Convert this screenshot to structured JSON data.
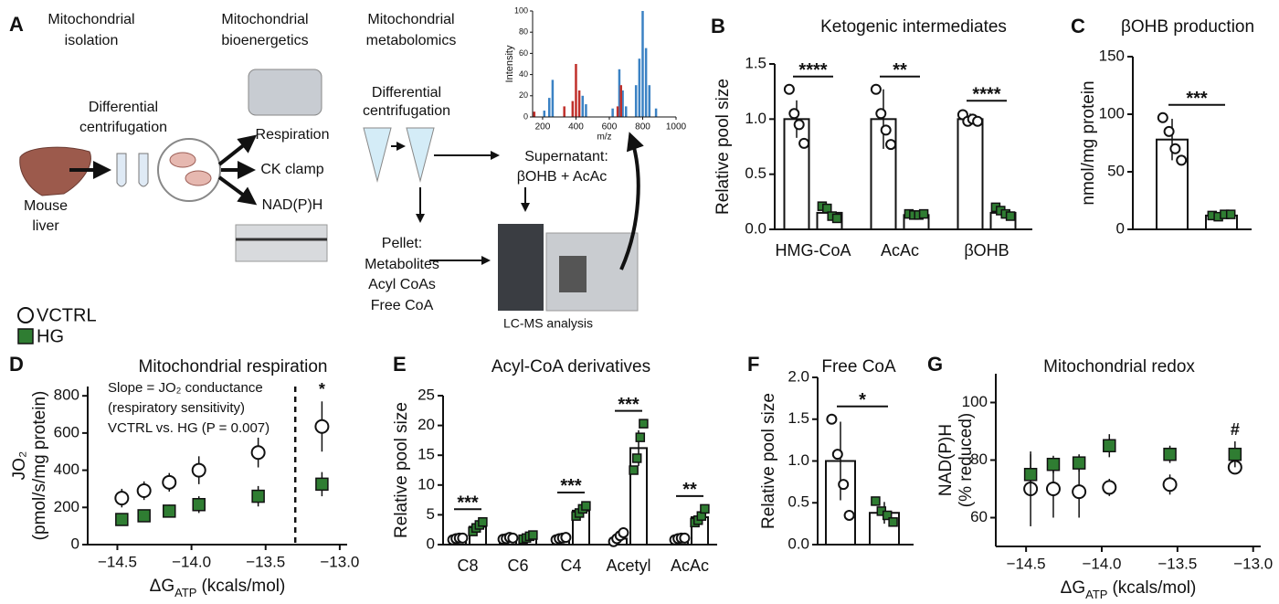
{
  "panel_a": {
    "label": "A",
    "headings": [
      [
        "Mitochondrial",
        "isolation"
      ],
      [
        "Mitochondrial",
        "bioenergetics"
      ],
      [
        "Mitochondrial",
        "metabolomics"
      ]
    ],
    "centrifugation_1": [
      "Differential",
      "centrifugation"
    ],
    "centrifugation_2": [
      "Differential",
      "centrifugation"
    ],
    "source": [
      "Mouse",
      "liver"
    ],
    "assays": [
      "Respiration",
      "CK clamp",
      "NAD(P)H"
    ],
    "supernatant": [
      "Supernatant:",
      "βOHB + AcAc"
    ],
    "pellet": [
      "Pellet:",
      "Metabolites",
      "Acyl CoAs",
      "Free CoA"
    ],
    "instrument": "LC-MS analysis",
    "spectrum": {
      "y_label": "Intensity",
      "x_label": "m/z",
      "xlim": [
        140,
        1000
      ],
      "ylim": [
        0,
        100
      ],
      "xticks": [
        200,
        400,
        600,
        800,
        1000
      ],
      "yticks": [
        0,
        20,
        40,
        60,
        80,
        100
      ],
      "series": [
        {
          "color": "#3b82c4",
          "x": [
            210,
            240,
            260,
            440,
            460,
            620,
            660,
            680,
            700,
            760,
            780,
            800,
            820,
            840,
            880
          ],
          "values": [
            6,
            18,
            35,
            20,
            12,
            8,
            45,
            25,
            10,
            30,
            55,
            100,
            65,
            30,
            8
          ]
        },
        {
          "color": "#c0302b",
          "x": [
            150,
            330,
            380,
            400,
            420,
            650,
            670
          ],
          "values": [
            5,
            10,
            15,
            50,
            25,
            10,
            30
          ]
        }
      ]
    }
  },
  "chart_data": [
    {
      "type": "bar",
      "panel": "B",
      "title": "Ketogenic intermediates",
      "y_label": [
        "Relative pool size"
      ],
      "categories": [
        "HMG-CoA",
        "AcAc",
        "βOHB"
      ],
      "ylim": [
        0,
        1.5
      ],
      "yticks": [
        {
          "value": 0,
          "label": "0.0"
        },
        0.5,
        {
          "value": 1,
          "label": "1.0"
        },
        1.5
      ],
      "significance": [
        "****",
        "**",
        "****"
      ],
      "series": [
        {
          "name": "VCTRL",
          "color": "#ffffff",
          "marker": "circle",
          "values": [
            1.0,
            1.0,
            1.0
          ],
          "errors": [
            0.17,
            0.27,
            0.05
          ],
          "points": [
            [
              1.27,
              1.05,
              0.95,
              0.78
            ],
            [
              1.27,
              1.05,
              0.9,
              0.77
            ],
            [
              1.04,
              0.98,
              1.0,
              0.98
            ]
          ]
        },
        {
          "name": "HG",
          "color": "#2f7d32",
          "marker": "square",
          "values": [
            0.15,
            0.13,
            0.15
          ],
          "errors": [
            0.04,
            0.02,
            0.04
          ],
          "points": [
            [
              0.21,
              0.19,
              0.12,
              0.1
            ],
            [
              0.14,
              0.13,
              0.13,
              0.14
            ],
            [
              0.2,
              0.17,
              0.14,
              0.12
            ]
          ]
        }
      ]
    },
    {
      "type": "bar",
      "panel": "C",
      "title": "βOHB production",
      "y_label": [
        "nmol/mg protein"
      ],
      "categories": [
        null
      ],
      "ylim": [
        0,
        150
      ],
      "yticks": [
        0,
        50,
        100,
        150
      ],
      "significance": [
        "***"
      ],
      "series": [
        {
          "color": "#ffffff",
          "marker": "circle",
          "values": [
            78
          ],
          "errors": [
            18
          ],
          "points": [
            [
              97,
              85,
              70,
              60
            ]
          ]
        },
        {
          "color": "#2f7d32",
          "marker": "square",
          "values": [
            12
          ],
          "errors": [
            1.5
          ],
          "points": [
            [
              12,
              11,
              13,
              13
            ]
          ]
        }
      ]
    },
    {
      "type": "scatter",
      "panel": "D",
      "title": "Mitochondrial respiration",
      "y_label": [
        "JO₂",
        "(pmol/s/mg protein)"
      ],
      "x_label": [
        "ΔG",
        "ATP",
        "(kcals/mol)"
      ],
      "xlim": [
        -14.7,
        -12.95
      ],
      "ylim": [
        0,
        850
      ],
      "xticks": [
        {
          "value": -14.5,
          "label": "−14.5"
        },
        {
          "value": -14,
          "label": "−14.0"
        },
        {
          "value": -13.5,
          "label": "−13.5"
        },
        {
          "value": -13,
          "label": "−13.0"
        }
      ],
      "yticks": [
        0,
        200,
        400,
        600,
        800
      ],
      "vline": -13.3,
      "annotations": [
        "Slope = JO₂ conductance",
        "(respiratory sensitivity)",
        "VCTRL vs. HG (P = 0.007)"
      ],
      "point_labels": [
        null,
        null,
        null,
        null,
        null,
        "*"
      ],
      "x": [
        -14.47,
        -14.32,
        -14.15,
        -13.95,
        -13.55,
        -13.12
      ],
      "series": [
        {
          "color": "#ffffff",
          "marker": "circle",
          "values": [
            250,
            290,
            335,
            400,
            495,
            635
          ],
          "errors": [
            50,
            50,
            50,
            75,
            80,
            135
          ]
        },
        {
          "color": "#2f7d32",
          "marker": "square",
          "values": [
            135,
            155,
            180,
            215,
            260,
            325
          ],
          "errors": [
            15,
            30,
            35,
            45,
            55,
            65
          ]
        }
      ]
    },
    {
      "type": "bar",
      "panel": "E",
      "title": "Acyl-CoA derivatives",
      "y_label": [
        "Relative pool size"
      ],
      "categories": [
        "C8",
        "C6",
        "C4",
        "Acetyl",
        "AcAc"
      ],
      "ylim": [
        0,
        25
      ],
      "yticks": [
        0,
        5,
        10,
        15,
        20,
        25
      ],
      "significance": [
        "***",
        null,
        "***",
        "***",
        "**"
      ],
      "series": [
        {
          "color": "#ffffff",
          "marker": "circle",
          "values": [
            1,
            1,
            1,
            1,
            1
          ],
          "errors": [
            0.2,
            0.2,
            0.3,
            0.5,
            0.2
          ],
          "points": [
            [
              0.8,
              1,
              1.1,
              1.1
            ],
            [
              0.9,
              1,
              1.2,
              1.1
            ],
            [
              0.8,
              1,
              1.1,
              1.2
            ],
            [
              0.5,
              1,
              1.5,
              2.0
            ],
            [
              0.8,
              1,
              1.1,
              1.1
            ]
          ]
        },
        {
          "color": "#2f7d32",
          "marker": "square",
          "values": [
            3.0,
            1.2,
            5.7,
            16.2,
            4.6
          ],
          "errors": [
            0.7,
            0.3,
            0.9,
            3,
            1
          ],
          "points": [
            [
              2.2,
              2.8,
              3.3,
              3.8
            ],
            [
              0.9,
              1.1,
              1.4,
              1.6
            ],
            [
              4.8,
              5.3,
              6,
              6.5
            ],
            [
              12.5,
              14.5,
              18,
              20.3
            ],
            [
              3.7,
              4.1,
              4.8,
              6.0
            ]
          ]
        }
      ]
    },
    {
      "type": "bar",
      "panel": "F",
      "title": "Free CoA",
      "y_label": [
        "Relative pool size"
      ],
      "categories": [
        null
      ],
      "ylim": [
        0,
        2
      ],
      "yticks": [
        {
          "value": 0,
          "label": "0.0"
        },
        0.5,
        {
          "value": 1,
          "label": "1.0"
        },
        1.5,
        {
          "value": 2,
          "label": "2.0"
        }
      ],
      "significance": [
        "*"
      ],
      "series": [
        {
          "color": "#ffffff",
          "marker": "circle",
          "values": [
            1.0
          ],
          "errors": [
            0.47
          ],
          "points": [
            [
              1.5,
              1.08,
              0.72,
              0.35
            ]
          ]
        },
        {
          "color": "#2f7d32",
          "marker": "square",
          "values": [
            0.38
          ],
          "errors": [
            0.13
          ],
          "points": [
            [
              0.52,
              0.4,
              0.35,
              0.27
            ]
          ]
        }
      ]
    },
    {
      "type": "scatter",
      "panel": "G",
      "title": "Mitochondrial redox",
      "y_label": [
        "NAD(P)H",
        "(% reduced)"
      ],
      "x_label": [
        "ΔG",
        "ATP",
        "(kcals/mol)"
      ],
      "xlim": [
        -14.7,
        -12.95
      ],
      "ylim": [
        50,
        110
      ],
      "xticks": [
        {
          "value": -14.5,
          "label": "−14.5"
        },
        {
          "value": -14,
          "label": "−14.0"
        },
        {
          "value": -13.5,
          "label": "−13.5"
        },
        {
          "value": -13,
          "label": "−13.0"
        }
      ],
      "yticks": [
        60,
        80,
        100
      ],
      "point_labels": [
        null,
        null,
        null,
        null,
        null,
        "#"
      ],
      "x": [
        -14.47,
        -14.32,
        -14.15,
        -13.95,
        -13.55,
        -13.12
      ],
      "series": [
        {
          "color": "#ffffff",
          "marker": "circle",
          "values": [
            70,
            70,
            69,
            70.5,
            71.5,
            77.5
          ],
          "errors": [
            13,
            10,
            9,
            3,
            3.5,
            2
          ]
        },
        {
          "color": "#2f7d32",
          "marker": "square",
          "values": [
            75,
            78.5,
            79,
            85,
            82,
            82
          ],
          "errors": [
            7,
            3,
            3,
            4,
            3,
            4.5
          ]
        }
      ]
    }
  ]
}
